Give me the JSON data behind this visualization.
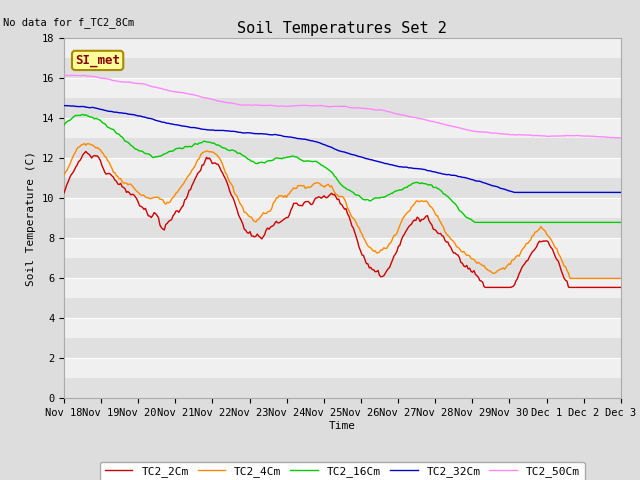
{
  "title": "Soil Temperatures Set 2",
  "ylabel": "Soil Temperature (C)",
  "xlabel": "Time",
  "no_data_label": "No data for f_TC2_8Cm",
  "si_met_label": "SI_met",
  "ylim": [
    0,
    18
  ],
  "yticks": [
    0,
    2,
    4,
    6,
    8,
    10,
    12,
    14,
    16,
    18
  ],
  "xtick_labels": [
    "Nov 18",
    "Nov 19",
    "Nov 20",
    "Nov 21",
    "Nov 22",
    "Nov 23",
    "Nov 24",
    "Nov 25",
    "Nov 26",
    "Nov 27",
    "Nov 28",
    "Nov 29",
    "Nov 30",
    "Dec 1",
    "Dec 2",
    "Dec 3"
  ],
  "legend_labels": [
    "TC2_2Cm",
    "TC2_4Cm",
    "TC2_16Cm",
    "TC2_32Cm",
    "TC2_50Cm"
  ],
  "line_colors": [
    "#cc0000",
    "#ff8800",
    "#00cc00",
    "#0000cc",
    "#ff88ff"
  ],
  "band_colors": [
    "#e8e8e8",
    "#f4f4f4"
  ],
  "title_fontsize": 11,
  "label_fontsize": 8,
  "tick_fontsize": 7.5,
  "legend_fontsize": 8
}
